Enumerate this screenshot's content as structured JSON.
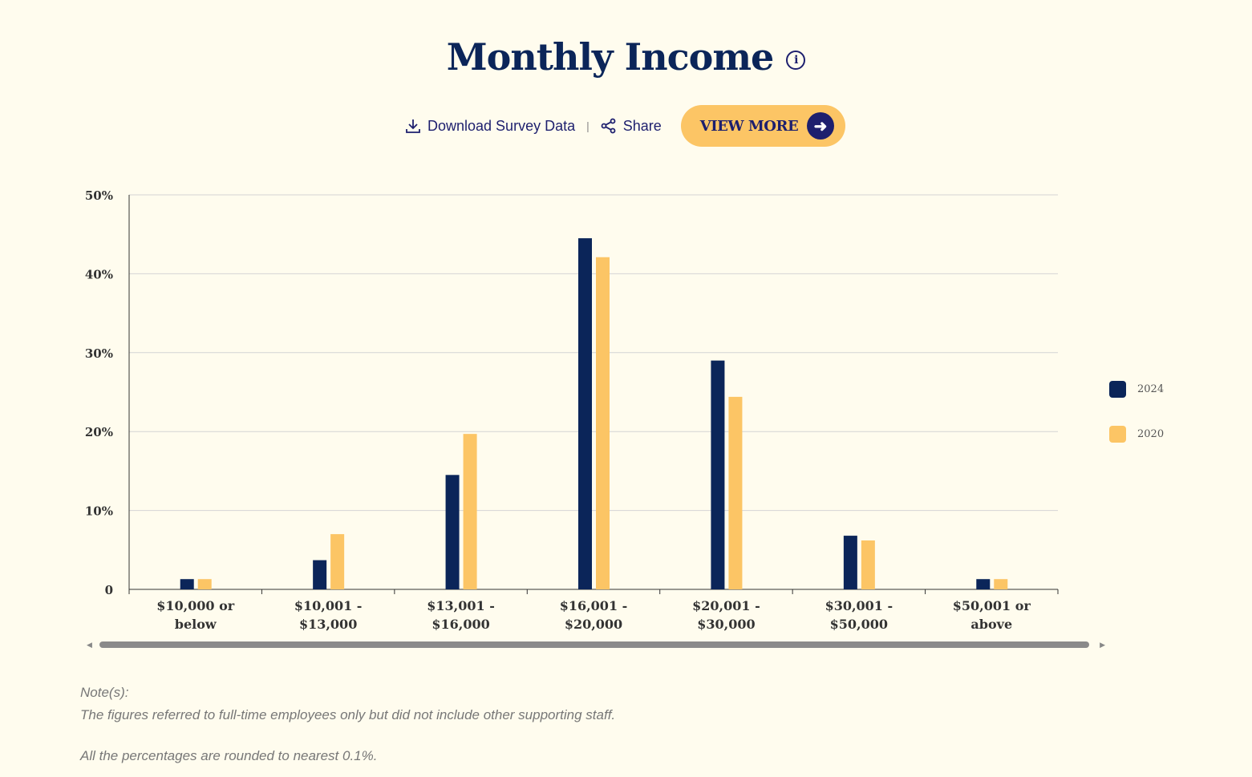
{
  "header": {
    "title": "Monthly Income",
    "info_icon": "info-icon"
  },
  "actions": {
    "download_label": "Download Survey Data",
    "separator": "|",
    "share_label": "Share",
    "view_more_label": "VIEW MORE"
  },
  "colors": {
    "series_2024": "#0b2559",
    "series_2020": "#fcc565",
    "grid": "#d4d4d4"
  },
  "chart_data": {
    "type": "bar",
    "title": "Monthly Income",
    "categories": [
      [
        "$10,000 or",
        "below"
      ],
      [
        "$10,001 -",
        "$13,000"
      ],
      [
        "$13,001 -",
        "$16,000"
      ],
      [
        "$16,001 -",
        "$20,000"
      ],
      [
        "$20,001 -",
        "$30,000"
      ],
      [
        "$30,001 -",
        "$50,000"
      ],
      [
        "$50,001 or",
        "above"
      ]
    ],
    "series": [
      {
        "name": "2024",
        "values": [
          1.3,
          3.7,
          14.5,
          44.5,
          29.0,
          6.8,
          1.3
        ]
      },
      {
        "name": "2020",
        "values": [
          1.3,
          7.0,
          19.7,
          42.1,
          24.4,
          6.2,
          1.3
        ]
      }
    ],
    "yticks": [
      "0",
      "10%",
      "20%",
      "30%",
      "40%",
      "50%"
    ],
    "ylim": [
      0,
      50
    ],
    "grid": true,
    "legend_position": "right"
  },
  "notes": {
    "heading": "Note(s):",
    "line1": "The figures referred to full-time employees only but did not include other supporting staff.",
    "line2": "All the percentages are rounded to nearest 0.1%."
  }
}
